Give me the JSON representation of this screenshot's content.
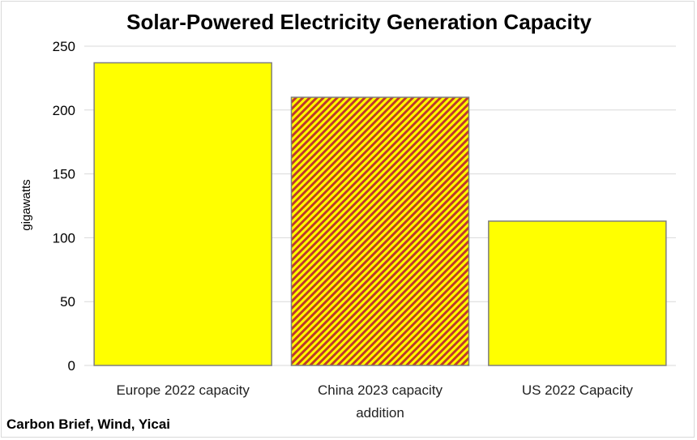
{
  "chart_data": {
    "type": "bar",
    "title": "Solar-Powered Electricity Generation Capacity",
    "ylabel": "gigawatts",
    "xlabel": "",
    "categories": [
      "Europe 2022 capacity",
      "China 2023 capacity addition",
      "US 2022 Capacity"
    ],
    "category_lines": [
      [
        "Europe 2022 capacity"
      ],
      [
        "China 2023 capacity",
        "addition"
      ],
      [
        "US 2022 Capacity"
      ]
    ],
    "values": [
      237,
      210,
      113
    ],
    "ylim": [
      0,
      250
    ],
    "yticks": [
      0,
      50,
      100,
      150,
      200,
      250
    ],
    "grid": true,
    "legend": "none",
    "bar_styles": [
      "solid",
      "hatched",
      "solid"
    ],
    "colors": {
      "bar_fill": "#ffff00",
      "hatch_a": "#ffff00",
      "hatch_b": "#c0392b",
      "bar_edge": "#7f7f7f",
      "grid": "#d9d9d9"
    },
    "source": "Carbon Brief, Wind, Yicai"
  }
}
